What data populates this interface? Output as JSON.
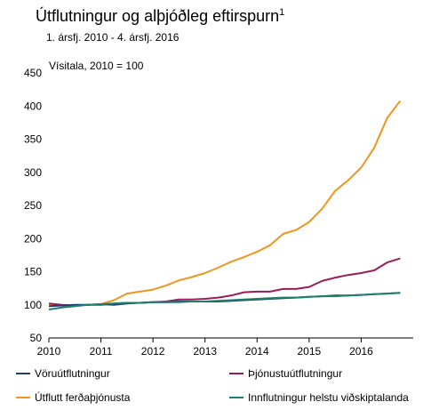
{
  "chart_data": {
    "type": "line",
    "title": "Útflutningur og alþjóðleg eftirspurn",
    "title_footnote": "1",
    "subtitle": "1. ársfj. 2010 - 4. ársfj. 2016",
    "ylabel": "Vísitala, 2010 = 100",
    "xlabel": "",
    "ylim": [
      50,
      450
    ],
    "yticks": [
      50,
      100,
      150,
      200,
      250,
      300,
      350,
      400,
      450
    ],
    "xlim": [
      2010,
      2017
    ],
    "xticks": [
      2010,
      2011,
      2012,
      2013,
      2014,
      2015,
      2016
    ],
    "grid": false,
    "legend_position": "bottom",
    "x": [
      2010.0,
      2010.25,
      2010.5,
      2010.75,
      2011.0,
      2011.25,
      2011.5,
      2011.75,
      2012.0,
      2012.25,
      2012.5,
      2012.75,
      2013.0,
      2013.25,
      2013.5,
      2013.75,
      2014.0,
      2014.25,
      2014.5,
      2014.75,
      2015.0,
      2015.25,
      2015.5,
      2015.75,
      2016.0,
      2016.25,
      2016.5,
      2016.75
    ],
    "series": [
      {
        "name": "Vöruútflutningur",
        "color": "#1f3d6e",
        "values": [
          98,
          99,
          100,
          100,
          101,
          100,
          102,
          103,
          104,
          104,
          105,
          105,
          105,
          105,
          106,
          107,
          108,
          109,
          110,
          111,
          112,
          113,
          114,
          114,
          115,
          116,
          117,
          118
        ]
      },
      {
        "name": "Þjónustuútflutningur",
        "color": "#9b1b5a",
        "values": [
          102,
          100,
          99,
          100,
          100,
          102,
          103,
          103,
          104,
          105,
          108,
          108,
          109,
          111,
          114,
          119,
          120,
          120,
          124,
          124,
          127,
          136,
          141,
          145,
          148,
          152,
          164,
          170
        ]
      },
      {
        "name": "Útflutt ferðaþjónusta",
        "color": "#f0951e",
        "values": [
          101,
          99,
          99,
          100,
          101,
          107,
          117,
          120,
          123,
          129,
          137,
          142,
          148,
          156,
          165,
          172,
          180,
          190,
          207,
          213,
          225,
          245,
          272,
          288,
          307,
          337,
          382,
          408
        ]
      },
      {
        "name": "Innflutningur helstu viðskiptalanda",
        "color": "#1e7f6a",
        "values": [
          93,
          96,
          98,
          100,
          101,
          102,
          103,
          103,
          104,
          104,
          104,
          105,
          105,
          106,
          107,
          108,
          109,
          110,
          111,
          111,
          112,
          113,
          113,
          114,
          115,
          116,
          117,
          118
        ]
      }
    ]
  }
}
